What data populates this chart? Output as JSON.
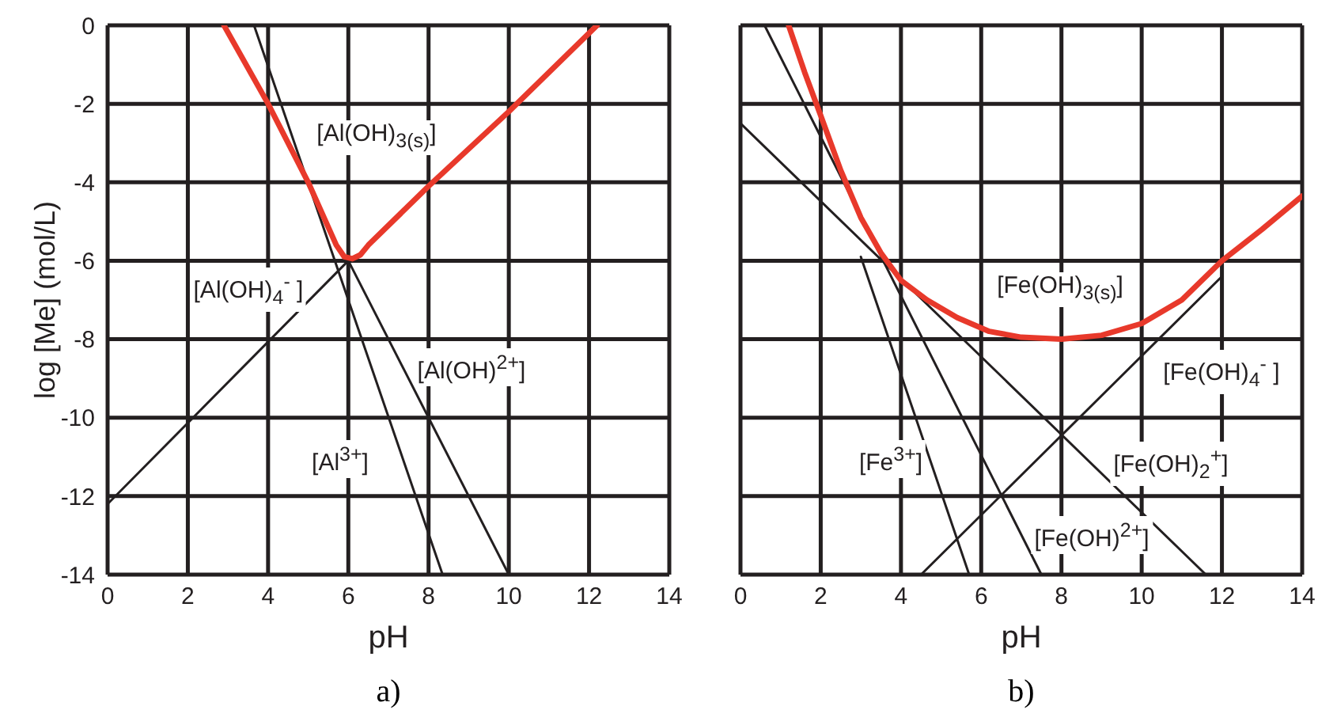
{
  "chart_data": [
    {
      "type": "line",
      "xlabel": "pH",
      "ylabel": "log [Me] (mol/L)",
      "xlim": [
        0,
        14
      ],
      "ylim": [
        -14,
        0
      ],
      "xticks": [
        0,
        2,
        4,
        6,
        8,
        10,
        12,
        14
      ],
      "yticks": [
        -14,
        -12,
        -10,
        -8,
        -6,
        -4,
        -2,
        0
      ],
      "grid": true,
      "legend": false,
      "marker": "none",
      "line_style": "solid",
      "series": [
        {
          "color": "#231f20",
          "x": [
            3.65,
            8.35
          ],
          "values": [
            0,
            -14
          ]
        },
        {
          "color": "#231f20",
          "x": [
            6,
            10
          ],
          "values": [
            -6,
            -14
          ]
        },
        {
          "color": "#231f20",
          "x": [
            0,
            6
          ],
          "values": [
            -12.2,
            -6
          ]
        },
        {
          "color": "#e8392b",
          "x": [
            2.9,
            4,
            5,
            5.7,
            5.9,
            6.1,
            6.3,
            6.5,
            8,
            10,
            12.2
          ],
          "values": [
            0,
            -2,
            -4,
            -5.6,
            -5.9,
            -5.95,
            -5.85,
            -5.6,
            -4.1,
            -2.2,
            0
          ]
        }
      ],
      "annotations": [
        "[Al(OH)$_{3(s)}$]",
        "[Al(OH)$_{4}$$^{-}$ ]",
        "[Al(OH)$^{2+}$]",
        "[Al$^{3+}$]",
        "a)"
      ]
    },
    {
      "type": "line",
      "xlabel": "pH",
      "xlim": [
        0,
        14
      ],
      "ylim": [
        -14,
        0
      ],
      "xticks": [
        0,
        2,
        4,
        6,
        8,
        10,
        12,
        14
      ],
      "yticks": [
        -14,
        -12,
        -10,
        -8,
        -6,
        -4,
        -2,
        0
      ],
      "tick_labels": "x",
      "grid": true,
      "legend": false,
      "marker": "none",
      "line_style": "solid",
      "series": [
        {
          "color": "#231f20",
          "x": [
            3,
            5.7
          ],
          "values": [
            -5.9,
            -14
          ]
        },
        {
          "color": "#231f20",
          "x": [
            0.6,
            7.5
          ],
          "values": [
            0,
            -14
          ]
        },
        {
          "color": "#231f20",
          "x": [
            0,
            11.6
          ],
          "values": [
            -2.5,
            -14
          ]
        },
        {
          "color": "#231f20",
          "x": [
            4.5,
            12
          ],
          "values": [
            -14,
            -6.4
          ]
        },
        {
          "color": "#e8392b",
          "x": [
            1.2,
            1.6,
            2,
            2.5,
            3,
            3.5,
            4,
            4.65,
            5.4,
            6.2,
            7,
            8,
            9,
            10,
            11,
            12,
            13,
            14
          ],
          "values": [
            0,
            -1.2,
            -2.3,
            -3.7,
            -4.9,
            -5.8,
            -6.5,
            -7,
            -7.45,
            -7.8,
            -7.95,
            -8,
            -7.9,
            -7.6,
            -7,
            -6,
            -5.2,
            -4.35
          ]
        }
      ],
      "annotations": [
        "[Fe(OH)$_{3(s)}$]",
        "[Fe(OH)$_{4}$$^{-}$ ]",
        "[Fe(OH)$_{2}$$^{+}$]",
        "[Fe$^{3+}$]",
        "[Fe(OH)$^{2+}$]",
        "b)"
      ]
    }
  ]
}
